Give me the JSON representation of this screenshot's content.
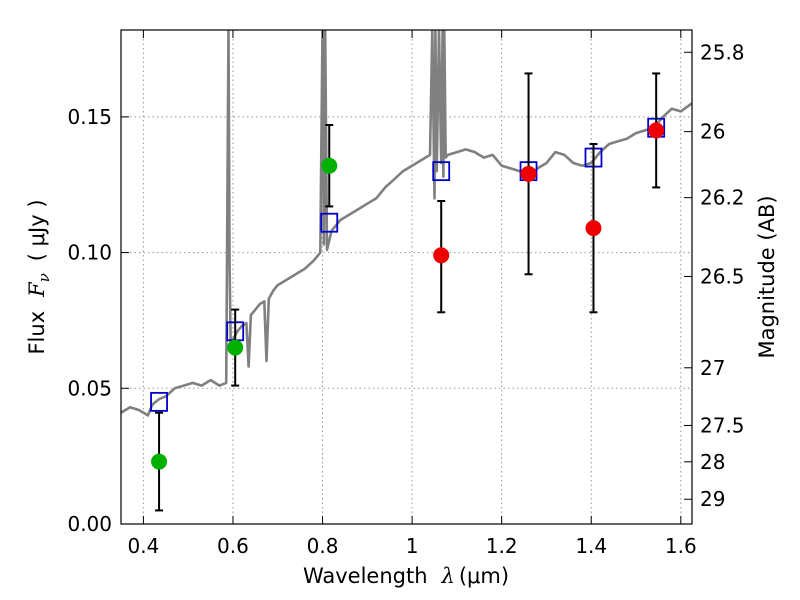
{
  "chart_data": {
    "type": "scatter",
    "title": "",
    "xlabel": {
      "prefix": "Wavelength",
      "var": "λ",
      "unit": "(μm)"
    },
    "ylabel": {
      "prefix": "Flux",
      "var": "F",
      "sub": "ν",
      "unit": "( μJy )"
    },
    "y2label": "Magnitude (AB)",
    "xlim": [
      0.35,
      1.625
    ],
    "ylim": [
      0.0,
      0.182
    ],
    "grid": true,
    "legend": "none",
    "x_ticks": [
      0.4,
      0.6,
      0.8,
      1.0,
      1.2,
      1.4,
      1.6
    ],
    "x_tick_labels": [
      "0.4",
      "0.6",
      "0.8",
      "1",
      "1.2",
      "1.4",
      "1.6"
    ],
    "y_ticks": [
      0.0,
      0.05,
      0.1,
      0.15
    ],
    "y_tick_labels": [
      "0.00",
      "0.05",
      "0.10",
      "0.15"
    ],
    "y2_ticks": [
      {
        "mag": 25.8,
        "label": "25.8"
      },
      {
        "mag": 26.0,
        "label": "26"
      },
      {
        "mag": 26.2,
        "label": "26.2"
      },
      {
        "mag": 26.5,
        "label": "26.5"
      },
      {
        "mag": 27.0,
        "label": "27"
      },
      {
        "mag": 27.5,
        "label": "27.5"
      },
      {
        "mag": 28.0,
        "label": "28"
      },
      {
        "mag": 29.0,
        "label": "29"
      }
    ],
    "colors": {
      "sed": "#808080",
      "model": "#0000cc",
      "green": "#00b000",
      "red": "#ee0000",
      "errorbar": "#000000",
      "grid": "#999999"
    },
    "series": [
      {
        "kind": "line",
        "color": "#808080",
        "x": [
          0.35,
          0.37,
          0.39,
          0.41,
          0.42,
          0.435,
          0.45,
          0.47,
          0.49,
          0.51,
          0.53,
          0.55,
          0.57,
          0.585,
          0.59,
          0.5925,
          0.595,
          0.6,
          0.61,
          0.62,
          0.63,
          0.635,
          0.64,
          0.65,
          0.66,
          0.67,
          0.675,
          0.68,
          0.69,
          0.7,
          0.72,
          0.74,
          0.76,
          0.78,
          0.795,
          0.8,
          0.803,
          0.806,
          0.81,
          0.82,
          0.84,
          0.86,
          0.88,
          0.9,
          0.92,
          0.94,
          0.96,
          0.98,
          1.0,
          1.02,
          1.04,
          1.045,
          1.05,
          1.052,
          1.055,
          1.06,
          1.065,
          1.068,
          1.07,
          1.072,
          1.075,
          1.08,
          1.1,
          1.12,
          1.14,
          1.16,
          1.18,
          1.2,
          1.22,
          1.24,
          1.26,
          1.28,
          1.3,
          1.32,
          1.34,
          1.36,
          1.38,
          1.4,
          1.42,
          1.44,
          1.46,
          1.48,
          1.5,
          1.52,
          1.54,
          1.56,
          1.58,
          1.6,
          1.625
        ],
        "y": [
          0.041,
          0.043,
          0.042,
          0.04,
          0.044,
          0.046,
          0.047,
          0.05,
          0.051,
          0.052,
          0.051,
          0.053,
          0.051,
          0.052,
          0.182,
          0.095,
          0.066,
          0.068,
          0.071,
          0.073,
          0.074,
          0.058,
          0.077,
          0.079,
          0.081,
          0.082,
          0.06,
          0.083,
          0.086,
          0.088,
          0.09,
          0.092,
          0.094,
          0.097,
          0.1,
          0.182,
          0.103,
          0.182,
          0.101,
          0.108,
          0.112,
          0.114,
          0.116,
          0.118,
          0.12,
          0.124,
          0.127,
          0.13,
          0.132,
          0.134,
          0.136,
          0.182,
          0.12,
          0.182,
          0.13,
          0.182,
          0.133,
          0.182,
          0.128,
          0.182,
          0.135,
          0.136,
          0.137,
          0.138,
          0.137,
          0.135,
          0.136,
          0.132,
          0.131,
          0.13,
          0.128,
          0.131,
          0.133,
          0.137,
          0.136,
          0.133,
          0.132,
          0.133,
          0.137,
          0.14,
          0.141,
          0.142,
          0.144,
          0.145,
          0.146,
          0.15,
          0.153,
          0.152,
          0.155
        ]
      },
      {
        "kind": "open-square",
        "color": "#0000cc",
        "x": [
          0.435,
          0.605,
          0.815,
          1.065,
          1.26,
          1.405,
          1.545
        ],
        "y": [
          0.045,
          0.071,
          0.111,
          0.13,
          0.13,
          0.135,
          0.146
        ]
      },
      {
        "kind": "dot",
        "color": "#00b000",
        "x": [
          0.435,
          0.605,
          0.815
        ],
        "y": [
          0.023,
          0.065,
          0.132
        ],
        "yerr_low": [
          0.005,
          0.051,
          0.117
        ],
        "yerr_high": [
          0.041,
          0.079,
          0.147
        ]
      },
      {
        "kind": "dot",
        "color": "#ee0000",
        "x": [
          1.065,
          1.26,
          1.405,
          1.545
        ],
        "y": [
          0.099,
          0.129,
          0.109,
          0.145
        ],
        "yerr_low": [
          0.078,
          0.092,
          0.078,
          0.124
        ],
        "yerr_high": [
          0.119,
          0.166,
          0.14,
          0.166
        ]
      }
    ]
  }
}
